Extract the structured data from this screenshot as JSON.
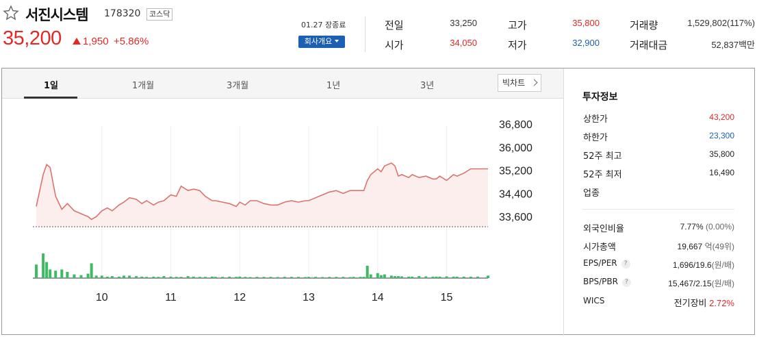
{
  "stock": {
    "name": "서진시스템",
    "code": "178320",
    "market": "코스닥",
    "price": "35,200",
    "change": "1,950",
    "change_pct": "+5.86%",
    "date_status": "01.27 장종료",
    "company_btn": "회사개요"
  },
  "stats": {
    "prev_label": "전일",
    "prev_value": "33,250",
    "high_label": "고가",
    "high_value": "35,800",
    "volume_label": "거래량",
    "volume_value": "1,529,802(117%)",
    "open_label": "시가",
    "open_value": "34,050",
    "low_label": "저가",
    "low_value": "32,900",
    "amount_label": "거래대금",
    "amount_value": "52,837백만"
  },
  "tabs": [
    "1일",
    "1개월",
    "3개월",
    "1년",
    "3년"
  ],
  "bigchart_label": "빅차트",
  "invest": {
    "title": "투자정보",
    "upper_label": "상한가",
    "upper_value": "43,200",
    "lower_label": "하한가",
    "lower_value": "23,300",
    "high52_label": "52주 최고",
    "high52_value": "35,800",
    "low52_label": "52주 최저",
    "low52_value": "16,490",
    "sector_label": "업종",
    "foreign_label": "외국인비율",
    "foreign_value": "7.77%",
    "foreign_sub": "(0.00%)",
    "mcap_label": "시가총액",
    "mcap_value": "19,667",
    "mcap_unit": "억(49위)",
    "eps_label": "EPS/PER",
    "eps_value": "1,696/19.6",
    "eps_unit": "(원/배)",
    "bps_label": "BPS/PBR",
    "bps_value": "15,467/2.15",
    "bps_unit": "(원/배)",
    "wics_label": "WICS",
    "wics_value": "전기장비",
    "wics_pct": "2.72%"
  },
  "colors": {
    "up": "#e22926",
    "down": "#1d5fb3",
    "line": "#d9736c",
    "fill": "#fdeeee",
    "volume": "#3dbb63"
  },
  "chart_data": {
    "type": "line",
    "y_ticks": [
      "36,800",
      "36,000",
      "35,200",
      "34,400",
      "33,600"
    ],
    "x_ticks": [
      "10",
      "11",
      "12",
      "13",
      "14",
      "15"
    ],
    "ylim": [
      33250,
      36800
    ],
    "baseline": 33250,
    "x": [
      9.05,
      9.15,
      9.2,
      9.25,
      9.33,
      9.42,
      9.5,
      9.6,
      9.7,
      9.8,
      9.85,
      9.92,
      10.0,
      10.08,
      10.15,
      10.25,
      10.32,
      10.4,
      10.5,
      10.58,
      10.65,
      10.75,
      10.82,
      10.9,
      11.0,
      11.08,
      11.15,
      11.25,
      11.33,
      11.42,
      11.5,
      11.6,
      11.65,
      11.75,
      11.85,
      11.95,
      12.0,
      12.08,
      12.15,
      12.25,
      12.35,
      12.45,
      12.55,
      12.65,
      12.75,
      12.85,
      12.95,
      13.0,
      13.1,
      13.2,
      13.3,
      13.4,
      13.5,
      13.6,
      13.65,
      13.75,
      13.8,
      13.85,
      13.9,
      14.0,
      14.05,
      14.1,
      14.2,
      14.25,
      14.3,
      14.35,
      14.45,
      14.5,
      14.6,
      14.7,
      14.8,
      14.85,
      14.9,
      15.0,
      15.1,
      15.15,
      15.25,
      15.35,
      15.45,
      15.6
    ],
    "values": [
      33950,
      35050,
      35400,
      35300,
      34300,
      33850,
      34050,
      33800,
      33700,
      33600,
      33500,
      33600,
      33800,
      33900,
      33800,
      34000,
      34100,
      34250,
      34200,
      34050,
      34150,
      34000,
      34100,
      34150,
      34350,
      34300,
      34650,
      34500,
      34550,
      34500,
      34300,
      34150,
      34150,
      34100,
      34050,
      33950,
      34100,
      34000,
      34150,
      34150,
      34050,
      34000,
      34000,
      34100,
      34150,
      34100,
      34150,
      34150,
      34250,
      34350,
      34450,
      34500,
      34400,
      34500,
      34500,
      34500,
      34500,
      34850,
      35050,
      35250,
      35150,
      35350,
      35450,
      35350,
      35000,
      35050,
      34950,
      35050,
      34950,
      35000,
      34900,
      34900,
      35000,
      34850,
      35050,
      35000,
      35100,
      35250,
      35250,
      35250
    ],
    "volume": [
      0.55,
      1.0,
      0.65,
      0.35,
      0.3,
      0.35,
      0.25,
      0.15,
      0.12,
      0.18,
      0.6,
      0.1,
      0.1,
      0.06,
      0.08,
      0.06,
      0.1,
      0.1,
      0.08,
      0.06,
      0.05,
      0.06,
      0.05,
      0.08,
      0.06,
      0.05,
      0.05,
      0.08,
      0.06,
      0.05,
      0.05,
      0.06,
      0.05,
      0.05,
      0.06,
      0.05,
      0.06,
      0.05,
      0.04,
      0.05,
      0.05,
      0.05,
      0.04,
      0.05,
      0.05,
      0.05,
      0.04,
      0.05,
      0.05,
      0.04,
      0.05,
      0.05,
      0.05,
      0.04,
      0.05,
      0.05,
      0.05,
      0.5,
      0.15,
      0.2,
      0.12,
      0.15,
      0.1,
      0.08,
      0.08,
      0.07,
      0.06,
      0.06,
      0.08,
      0.07,
      0.06,
      0.06,
      0.06,
      0.07,
      0.06,
      0.06,
      0.06,
      0.06,
      0.06,
      0.1
    ]
  }
}
